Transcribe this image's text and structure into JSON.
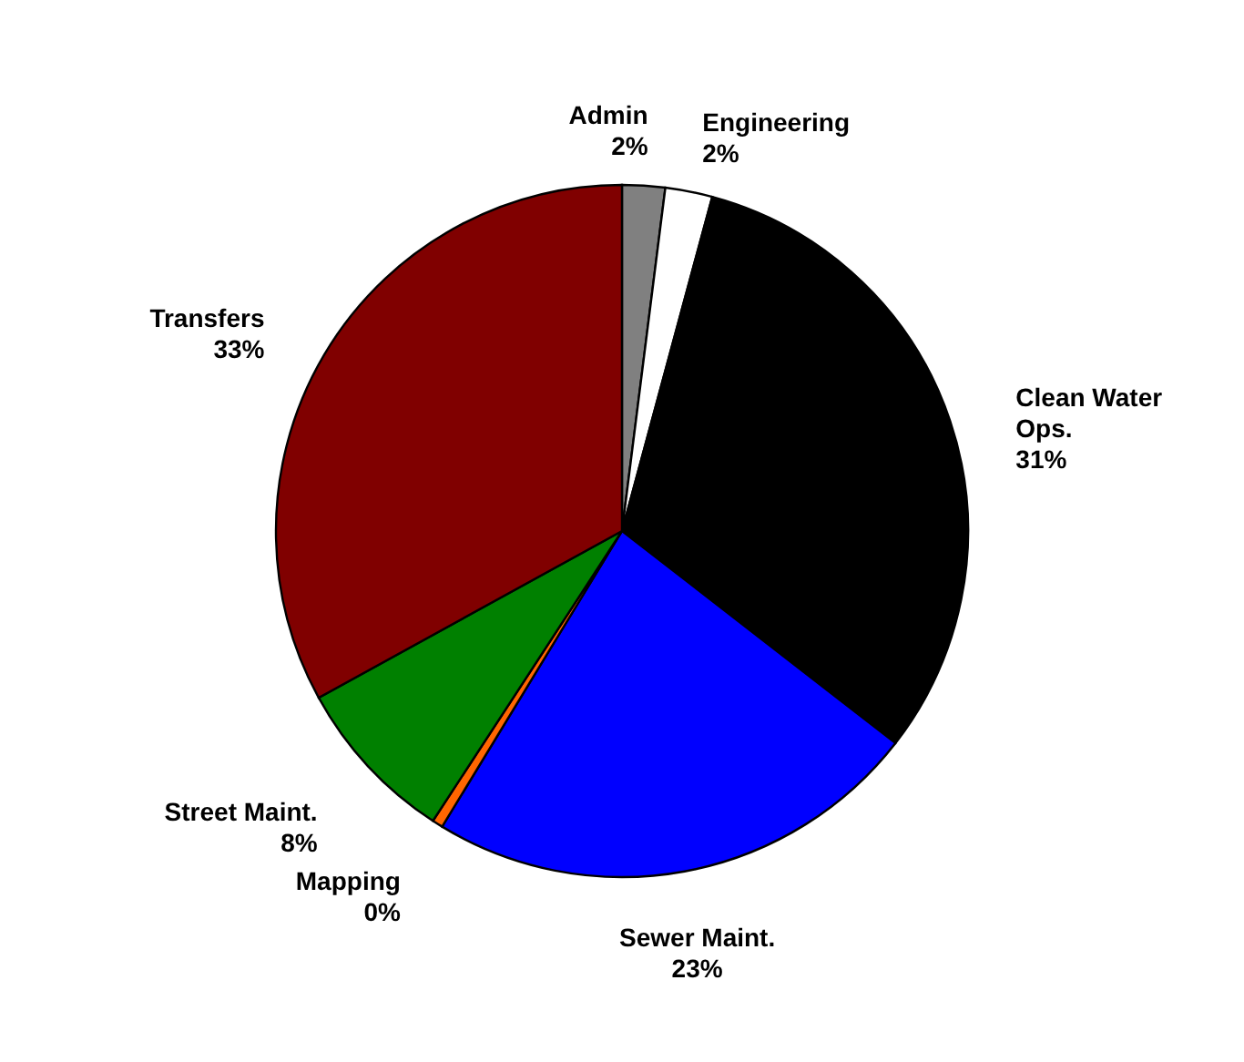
{
  "chart_data": {
    "type": "pie",
    "categories": [
      "Admin",
      "Engineering",
      "Clean Water Ops.",
      "Sewer Maint.",
      "Mapping",
      "Street Maint.",
      "Transfers"
    ],
    "values": [
      2.0,
      2.2,
      31.3,
      23.2,
      0.5,
      7.8,
      33.0
    ],
    "value_labels": [
      "2%",
      "2%",
      "31%",
      "23%",
      "0%",
      "8%",
      "33%"
    ],
    "colors": [
      "#808080",
      "#ffffff",
      "#000000",
      "#0000ff",
      "#ff6600",
      "#008000",
      "#800000"
    ]
  }
}
